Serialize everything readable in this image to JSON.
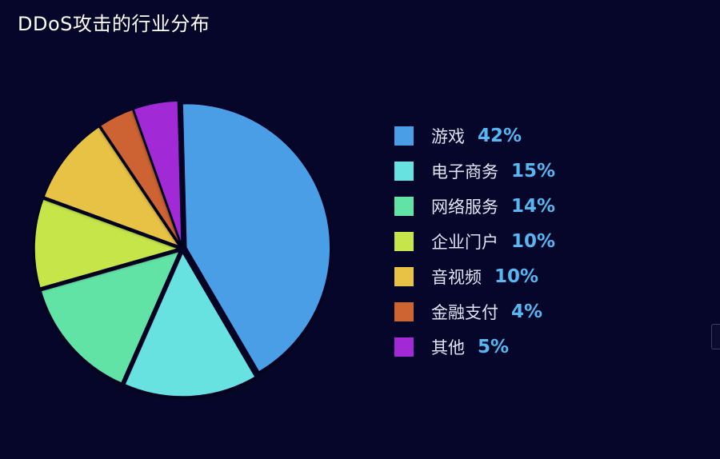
{
  "chart_data": {
    "type": "pie",
    "title": "DDoS攻击的行业分布",
    "legend_position": "right",
    "slices": [
      {
        "label": "游戏",
        "value": 42,
        "value_label": "42%",
        "color": "#4a9ee6"
      },
      {
        "label": "电子商务",
        "value": 15,
        "value_label": "15%",
        "color": "#67e2e0"
      },
      {
        "label": "网络服务",
        "value": 14,
        "value_label": "14%",
        "color": "#62e3a6"
      },
      {
        "label": "企业门户",
        "value": 10,
        "value_label": "10%",
        "color": "#c6e54a"
      },
      {
        "label": "音视频",
        "value": 10,
        "value_label": "10%",
        "color": "#e7c244"
      },
      {
        "label": "金融支付",
        "value": 4,
        "value_label": "4%",
        "color": "#cd6431"
      },
      {
        "label": "其他",
        "value": 5,
        "value_label": "5%",
        "color": "#a12ad6"
      }
    ]
  }
}
